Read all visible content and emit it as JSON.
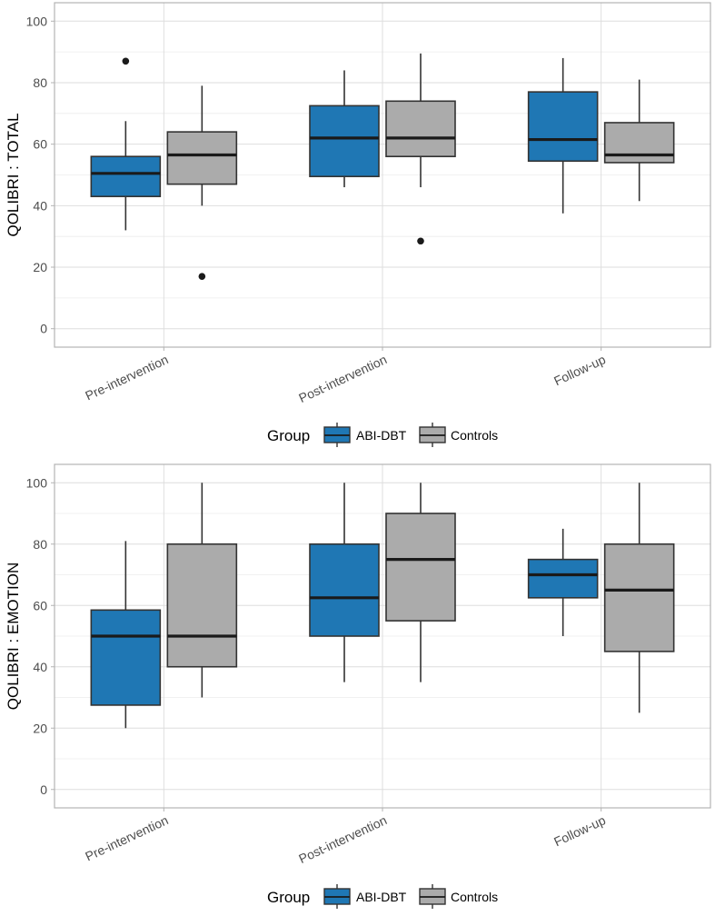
{
  "colors": {
    "abi_dbt": "#1f77b4",
    "controls": "#ababab",
    "panel_border": "#b3b3b3",
    "grid_major": "#dedede",
    "grid_minor": "#ececec",
    "tick_text": "#4d4d4d",
    "outline": "#333333"
  },
  "chart_data": [
    {
      "type": "boxplot",
      "ylabel": "QOLIBRI : TOTAL",
      "xlabel": "",
      "ylim": [
        -6,
        106
      ],
      "y_ticks": [
        0,
        20,
        40,
        60,
        80,
        100
      ],
      "grid": true,
      "legend_position": "bottom",
      "legend_title": "Group",
      "categories": [
        "Pre-intervention",
        "Post-intervention",
        "Follow-up"
      ],
      "series": [
        {
          "name": "ABI-DBT",
          "color": "#1f77b4",
          "boxes": [
            {
              "whisker_low": 32,
              "q1": 43,
              "median": 50.5,
              "q3": 56,
              "whisker_high": 67.5,
              "outliers": [
                87
              ]
            },
            {
              "whisker_low": 46,
              "q1": 49.5,
              "median": 62,
              "q3": 72.5,
              "whisker_high": 84,
              "outliers": []
            },
            {
              "whisker_low": 37.5,
              "q1": 54.5,
              "median": 61.5,
              "q3": 77,
              "whisker_high": 88,
              "outliers": []
            }
          ]
        },
        {
          "name": "Controls",
          "color": "#ababab",
          "boxes": [
            {
              "whisker_low": 40,
              "q1": 47,
              "median": 56.5,
              "q3": 64,
              "whisker_high": 79,
              "outliers": [
                17
              ]
            },
            {
              "whisker_low": 46,
              "q1": 56,
              "median": 62,
              "q3": 74,
              "whisker_high": 89.5,
              "outliers": [
                28.5
              ]
            },
            {
              "whisker_low": 41.5,
              "q1": 54,
              "median": 56.5,
              "q3": 67,
              "whisker_high": 81,
              "outliers": []
            }
          ]
        }
      ]
    },
    {
      "type": "boxplot",
      "ylabel": "QOLIBRI : EMOTION",
      "xlabel": "",
      "ylim": [
        -6,
        106
      ],
      "y_ticks": [
        0,
        20,
        40,
        60,
        80,
        100
      ],
      "grid": true,
      "legend_position": "bottom",
      "legend_title": "Group",
      "categories": [
        "Pre-intervention",
        "Post-intervention",
        "Follow-up"
      ],
      "series": [
        {
          "name": "ABI-DBT",
          "color": "#1f77b4",
          "boxes": [
            {
              "whisker_low": 20,
              "q1": 27.5,
              "median": 50,
              "q3": 58.5,
              "whisker_high": 81,
              "outliers": []
            },
            {
              "whisker_low": 35,
              "q1": 50,
              "median": 62.5,
              "q3": 80,
              "whisker_high": 100,
              "outliers": []
            },
            {
              "whisker_low": 50,
              "q1": 62.5,
              "median": 70,
              "q3": 75,
              "whisker_high": 85,
              "outliers": []
            }
          ]
        },
        {
          "name": "Controls",
          "color": "#ababab",
          "boxes": [
            {
              "whisker_low": 30,
              "q1": 40,
              "median": 50,
              "q3": 80,
              "whisker_high": 100,
              "outliers": []
            },
            {
              "whisker_low": 35,
              "q1": 55,
              "median": 75,
              "q3": 90,
              "whisker_high": 100,
              "outliers": []
            },
            {
              "whisker_low": 25,
              "q1": 45,
              "median": 65,
              "q3": 80,
              "whisker_high": 100,
              "outliers": []
            }
          ]
        }
      ]
    }
  ]
}
